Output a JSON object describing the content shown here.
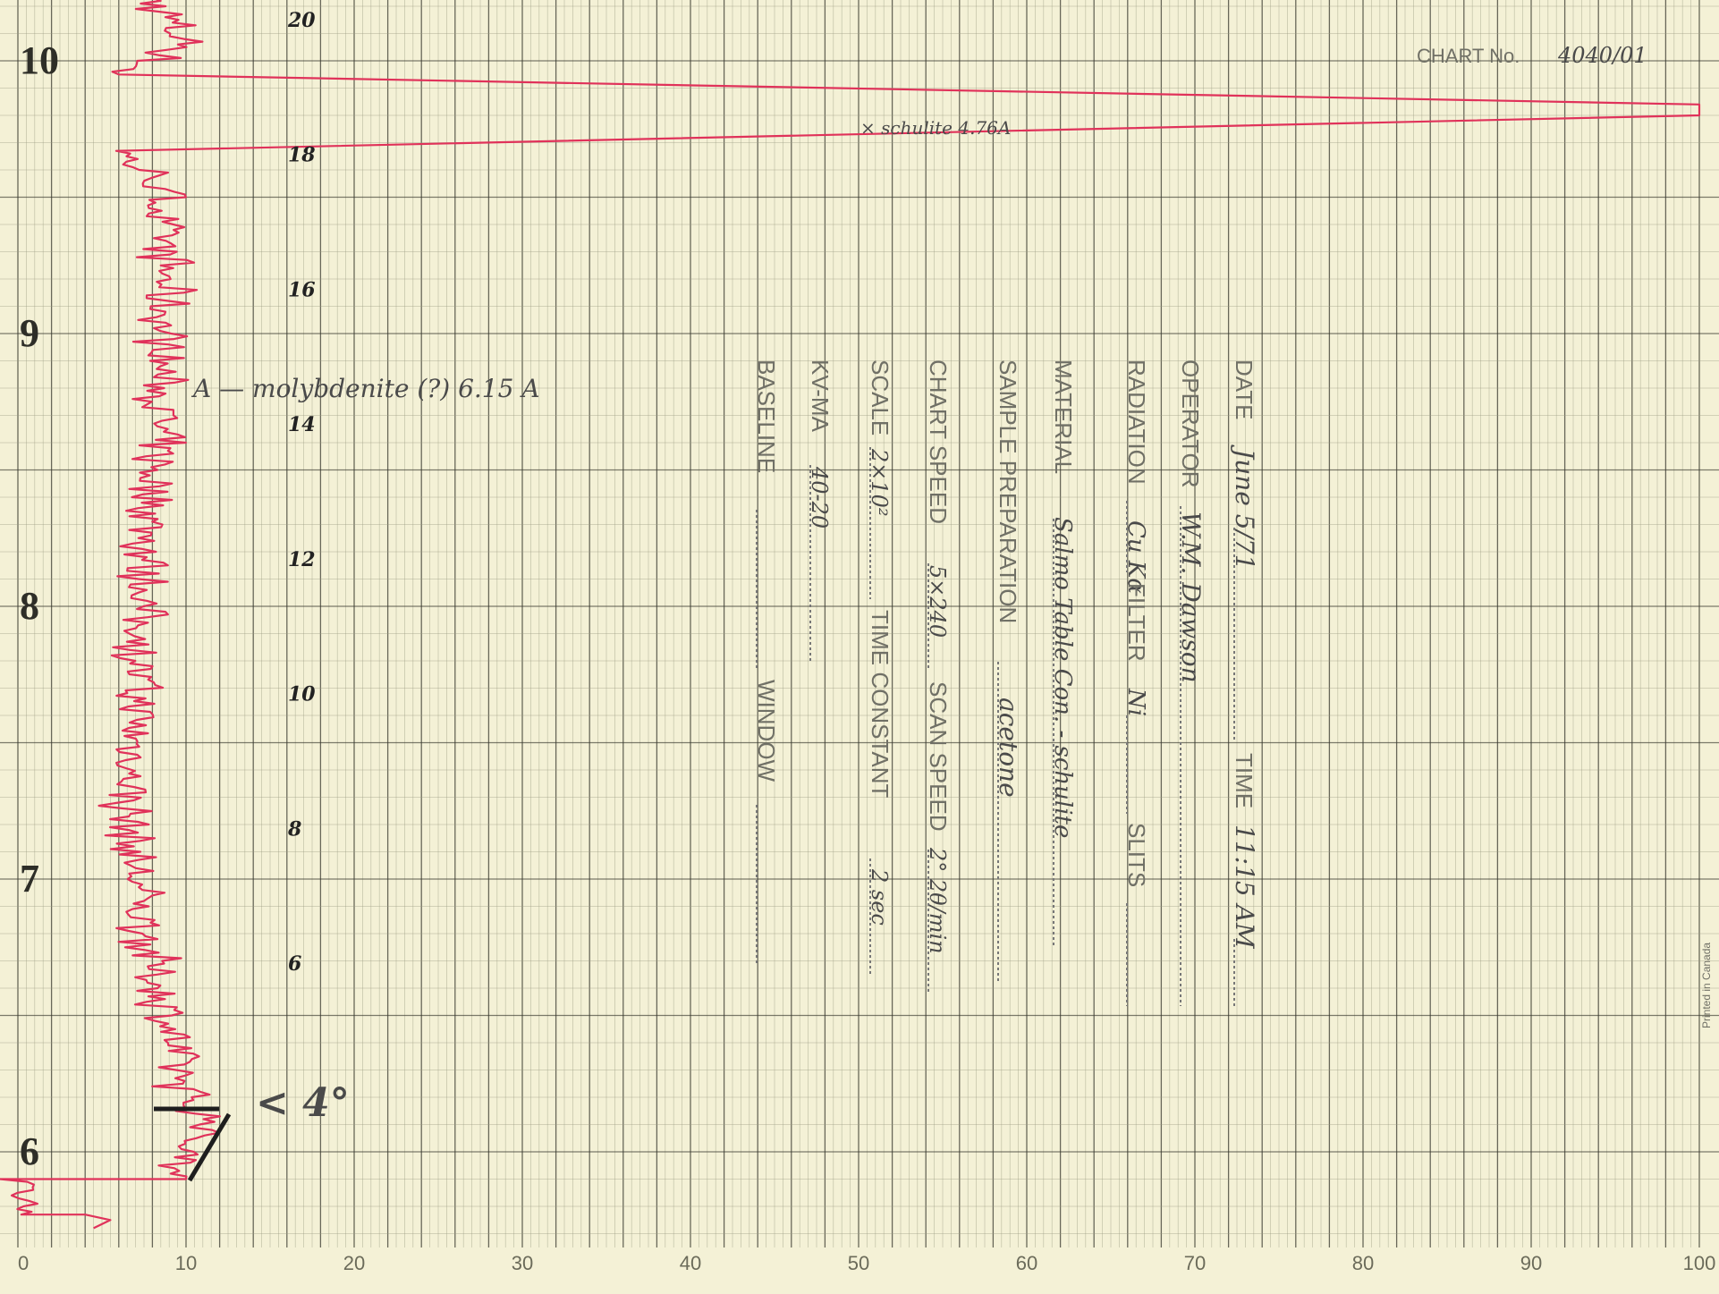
{
  "chart_data": {
    "type": "line",
    "title": "",
    "xlabel": "",
    "ylabel": "",
    "x_axis": {
      "range": [
        0,
        100
      ],
      "tick_labels": [
        "0",
        "10",
        "20",
        "30",
        "40",
        "50",
        "60",
        "70",
        "80",
        "90",
        "100"
      ]
    },
    "two_theta_axis": {
      "range": [
        5.5,
        10.25
      ],
      "labels": [
        "6",
        "7",
        "8",
        "9",
        "10"
      ]
    },
    "pen_scale_labels": [
      "20",
      "18",
      "16",
      "14",
      "12",
      "10",
      "8",
      "6",
      "4°"
    ],
    "grid": true,
    "series": [
      {
        "color": "#e0325a",
        "points": [
          [
            7.5,
            10.27
          ],
          [
            10.0,
            10.05
          ],
          [
            6.0,
            9.95
          ],
          [
            100,
            9.84
          ],
          [
            100,
            9.8
          ],
          [
            6.0,
            9.67
          ],
          [
            8.5,
            9.55
          ],
          [
            8.8,
            9.2
          ],
          [
            8.5,
            8.8
          ],
          [
            7.8,
            8.3
          ],
          [
            7.2,
            7.8
          ],
          [
            6.5,
            7.2
          ],
          [
            7.5,
            6.8
          ],
          [
            9.0,
            6.45
          ],
          [
            10.0,
            6.18
          ],
          [
            11.5,
            6.1
          ],
          [
            10.0,
            6.0
          ],
          [
            10.0,
            5.9
          ],
          [
            0.2,
            5.9
          ],
          [
            0.2,
            5.77
          ],
          [
            4.0,
            5.77
          ],
          [
            5.5,
            5.75
          ],
          [
            4.5,
            5.72
          ]
        ]
      }
    ],
    "annotations": [
      {
        "text": "× schulite 4.76A"
      },
      {
        "text": "A — molybdenite (?) 6.15 A"
      },
      {
        "text": "< 4°"
      }
    ]
  },
  "chart_info": {
    "chart_number_label": "CHART No.",
    "chart_number_value": "4040/01",
    "side_print": "Printed in Canada"
  },
  "record_fields": [
    {
      "label": "DATE",
      "value": "June 5/71",
      "label2": "TIME",
      "value2": "11:15 AM"
    },
    {
      "label": "OPERATOR",
      "value": "W.M. Dawson",
      "label2": "",
      "value2": ""
    },
    {
      "label": "RADIATION",
      "value": "Cu Kα",
      "label2": "FILTER",
      "value2": "Ni",
      "label3": "SLITS",
      "value3": ""
    },
    {
      "label": "MATERIAL",
      "value": "Salmo Table Con. - schulite",
      "label2": "",
      "value2": ""
    },
    {
      "label": "SAMPLE PREPARATION",
      "value": "acetone",
      "label2": "",
      "value2": ""
    },
    {
      "label": "CHART SPEED",
      "value": "5×240",
      "label2": "SCAN SPEED",
      "value2": "2° 2θ/min"
    },
    {
      "label": "SCALE",
      "value": "2×10²",
      "label2": "TIME CONSTANT",
      "value2": "2 sec"
    },
    {
      "label": "KV-MA",
      "value": "40-20",
      "label2": "",
      "value2": ""
    },
    {
      "label": "BASELINE",
      "value": "",
      "label2": "WINDOW",
      "value2": ""
    }
  ],
  "colors": {
    "paper": "#f4f1d6",
    "trace": "#e0325a",
    "grid_major": "#3a3a30",
    "grid_minor": "#9a9a80"
  }
}
